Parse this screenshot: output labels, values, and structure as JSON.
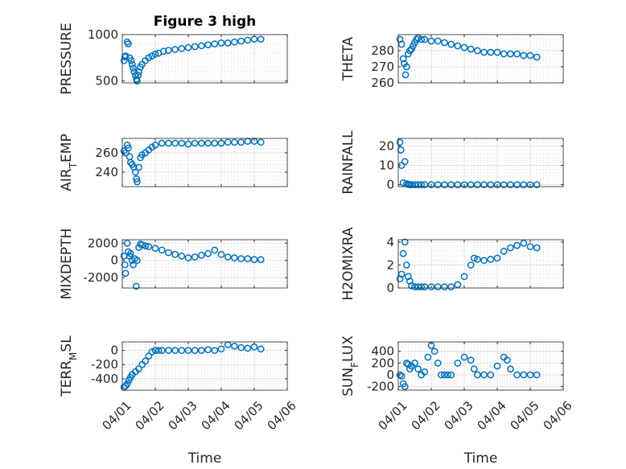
{
  "chart_data": {
    "type": "scatter",
    "figure_title": "Figure 3 high",
    "xlabel": "Time",
    "xtick_labels": [
      "04/01",
      "04/02",
      "04/03",
      "04/04",
      "04/05",
      "04/06"
    ],
    "xlim": [
      0,
      5
    ],
    "marker_color": "#0072bd",
    "grid": true,
    "panels": [
      {
        "id": "pressure",
        "ylabel": "PRESSURE",
        "title": "Figure 3 high",
        "ylim": [
          480,
          1000
        ],
        "yticks": [
          500,
          1000
        ],
        "ytick_labels": [
          "500",
          "1000"
        ],
        "x": [
          0.05,
          0.08,
          0.1,
          0.15,
          0.18,
          0.22,
          0.27,
          0.3,
          0.33,
          0.36,
          0.4,
          0.43,
          0.45,
          0.48,
          0.5,
          0.55,
          0.6,
          0.7,
          0.8,
          0.9,
          1.0,
          1.1,
          1.25,
          1.4,
          1.6,
          1.8,
          2.0,
          2.2,
          2.4,
          2.6,
          2.8,
          3.0,
          3.2,
          3.4,
          3.6,
          3.8,
          4.0,
          4.2
        ],
        "y": [
          720,
          760,
          770,
          920,
          900,
          750,
          720,
          680,
          640,
          600,
          560,
          520,
          500,
          560,
          600,
          650,
          680,
          720,
          750,
          770,
          790,
          800,
          820,
          830,
          840,
          850,
          860,
          870,
          880,
          890,
          900,
          910,
          910,
          920,
          930,
          940,
          950,
          950
        ]
      },
      {
        "id": "theta",
        "ylabel": "THETA",
        "ylim": [
          260,
          290
        ],
        "yticks": [
          260,
          270,
          280
        ],
        "ytick_labels": [
          "260",
          "270",
          "280"
        ],
        "x": [
          0.05,
          0.1,
          0.15,
          0.18,
          0.22,
          0.25,
          0.3,
          0.35,
          0.4,
          0.45,
          0.5,
          0.55,
          0.6,
          0.7,
          0.8,
          1.0,
          1.2,
          1.4,
          1.6,
          1.8,
          2.0,
          2.2,
          2.4,
          2.6,
          2.8,
          3.0,
          3.2,
          3.4,
          3.6,
          3.8,
          4.0,
          4.2
        ],
        "y": [
          287,
          284,
          275,
          272,
          265,
          270,
          278,
          280,
          281,
          283,
          285,
          287,
          288,
          287,
          287,
          286,
          286,
          285,
          284,
          283,
          282,
          281,
          280,
          279,
          279,
          279,
          278,
          278,
          278,
          277,
          277,
          276
        ]
      },
      {
        "id": "air_temp",
        "ylabel": "AIR_TEMP",
        "ylim": [
          225,
          275
        ],
        "yticks": [
          240,
          260
        ],
        "ytick_labels": [
          "240",
          "260"
        ],
        "x": [
          0.05,
          0.1,
          0.15,
          0.18,
          0.22,
          0.25,
          0.3,
          0.35,
          0.4,
          0.43,
          0.45,
          0.5,
          0.55,
          0.6,
          0.7,
          0.8,
          0.9,
          1.0,
          1.2,
          1.4,
          1.6,
          1.8,
          2.0,
          2.2,
          2.4,
          2.6,
          2.8,
          3.0,
          3.2,
          3.4,
          3.6,
          3.8,
          4.0,
          4.2
        ],
        "y": [
          262,
          260,
          268,
          265,
          256,
          250,
          248,
          245,
          240,
          233,
          230,
          245,
          255,
          258,
          260,
          263,
          266,
          268,
          270,
          270,
          270,
          270,
          269,
          270,
          270,
          270,
          270,
          270,
          271,
          271,
          271,
          272,
          272,
          271
        ]
      },
      {
        "id": "rainfall",
        "ylabel": "RAINFALL",
        "ylim": [
          -1,
          24
        ],
        "yticks": [
          0,
          10,
          20
        ],
        "ytick_labels": [
          "0",
          "10",
          "20"
        ],
        "x": [
          0.05,
          0.08,
          0.1,
          0.15,
          0.2,
          0.25,
          0.3,
          0.35,
          0.4,
          0.5,
          0.6,
          0.7,
          0.8,
          1.0,
          1.2,
          1.4,
          1.6,
          1.8,
          2.0,
          2.2,
          2.4,
          2.6,
          2.8,
          3.0,
          3.2,
          3.4,
          3.6,
          3.8,
          4.0,
          4.2
        ],
        "y": [
          22,
          18,
          10,
          1,
          12,
          0.5,
          0.2,
          0,
          0,
          0,
          0,
          0,
          0,
          0,
          0,
          0,
          0,
          0,
          0,
          0,
          0,
          0,
          0,
          0,
          0,
          0,
          0,
          0,
          0,
          0
        ]
      },
      {
        "id": "mixdepth",
        "ylabel": "MIXDEPTH",
        "ylim": [
          -3200,
          2400
        ],
        "yticks": [
          -2000,
          0,
          2000
        ],
        "ytick_labels": [
          "-2000",
          "0",
          "2000"
        ],
        "x": [
          0.05,
          0.08,
          0.1,
          0.15,
          0.18,
          0.22,
          0.25,
          0.3,
          0.33,
          0.38,
          0.42,
          0.45,
          0.5,
          0.55,
          0.6,
          0.7,
          0.8,
          1.0,
          1.2,
          1.4,
          1.6,
          1.8,
          2.0,
          2.2,
          2.4,
          2.6,
          2.8,
          3.0,
          3.2,
          3.4,
          3.6,
          3.8,
          4.0,
          4.2
        ],
        "y": [
          500,
          -500,
          -1500,
          2000,
          1000,
          500,
          800,
          0,
          -500,
          200,
          -3000,
          0,
          1500,
          1900,
          1800,
          1700,
          1600,
          1400,
          1200,
          900,
          700,
          500,
          300,
          400,
          600,
          800,
          1200,
          700,
          400,
          300,
          200,
          200,
          100,
          100
        ]
      },
      {
        "id": "h2omixra",
        "ylabel": "H2OMIXRA",
        "ylim": [
          0,
          4.2
        ],
        "yticks": [
          0,
          2,
          4
        ],
        "ytick_labels": [
          "0",
          "2",
          "4"
        ],
        "x": [
          0.05,
          0.1,
          0.15,
          0.2,
          0.25,
          0.3,
          0.35,
          0.4,
          0.5,
          0.6,
          0.7,
          0.8,
          1.0,
          1.2,
          1.4,
          1.6,
          1.8,
          2.0,
          2.2,
          2.3,
          2.4,
          2.6,
          2.8,
          3.0,
          3.2,
          3.4,
          3.6,
          3.8,
          4.0,
          4.2
        ],
        "y": [
          0.8,
          1.2,
          3.0,
          4.0,
          2.0,
          1.0,
          0.6,
          0.2,
          0.1,
          0.1,
          0.1,
          0.1,
          0.1,
          0.1,
          0.1,
          0.1,
          0.3,
          1.0,
          2.0,
          2.6,
          2.5,
          2.4,
          2.5,
          2.6,
          3.2,
          3.5,
          3.7,
          3.9,
          3.6,
          3.5
        ]
      },
      {
        "id": "terr_msl",
        "ylabel": "TERR_MSL",
        "ylim": [
          -560,
          120
        ],
        "yticks": [
          -400,
          -200,
          0
        ],
        "ytick_labels": [
          "-400",
          "-200",
          "0"
        ],
        "x": [
          0.05,
          0.1,
          0.15,
          0.2,
          0.25,
          0.3,
          0.4,
          0.5,
          0.6,
          0.7,
          0.8,
          0.9,
          1.0,
          1.1,
          1.2,
          1.4,
          1.6,
          1.8,
          2.0,
          2.2,
          2.4,
          2.6,
          2.8,
          3.0,
          3.2,
          3.4,
          3.6,
          3.8,
          4.0,
          4.2
        ],
        "y": [
          -520,
          -500,
          -470,
          -420,
          -380,
          -340,
          -300,
          -260,
          -200,
          -150,
          -80,
          -20,
          0,
          0,
          0,
          0,
          0,
          0,
          0,
          0,
          0,
          10,
          0,
          20,
          80,
          60,
          40,
          30,
          50,
          20
        ]
      },
      {
        "id": "sun_flux",
        "ylabel": "SUN_FLUX",
        "ylim": [
          -260,
          560
        ],
        "yticks": [
          -200,
          0,
          200,
          400
        ],
        "ytick_labels": [
          "-200",
          "0",
          "200",
          "400"
        ],
        "x": [
          0.05,
          0.1,
          0.15,
          0.2,
          0.25,
          0.3,
          0.35,
          0.4,
          0.5,
          0.6,
          0.7,
          0.8,
          0.9,
          1.0,
          1.1,
          1.2,
          1.3,
          1.4,
          1.5,
          1.6,
          1.8,
          2.0,
          2.2,
          2.3,
          2.4,
          2.6,
          2.8,
          3.0,
          3.2,
          3.3,
          3.4,
          3.6,
          3.8,
          4.0,
          4.2
        ],
        "y": [
          0,
          -20,
          -150,
          -200,
          200,
          180,
          100,
          150,
          200,
          100,
          0,
          50,
          300,
          500,
          400,
          200,
          0,
          0,
          0,
          0,
          200,
          300,
          250,
          100,
          0,
          0,
          0,
          150,
          300,
          250,
          100,
          0,
          0,
          0,
          0
        ]
      }
    ]
  }
}
